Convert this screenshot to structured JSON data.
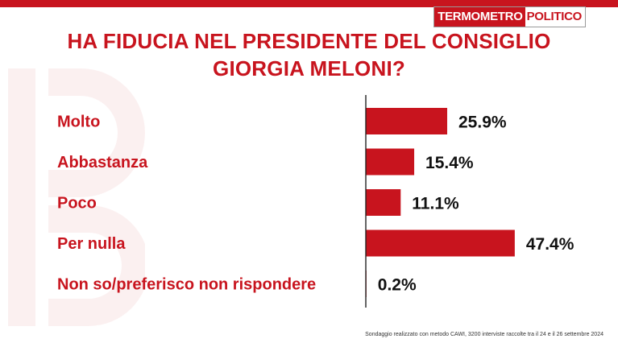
{
  "logo": {
    "part1": "TERMOMETRO",
    "part2": "POLITICO"
  },
  "title_lines": [
    "HA FIDUCIA NEL PRESIDENTE DEL CONSIGLIO",
    "GIORGIA MELONI?"
  ],
  "footnote": "Sondaggio realizzato con metodo CAWI, 3200 interviste raccolte tra il 24 e il  26 settembre 2024",
  "colors": {
    "accent": "#c8141e",
    "bar": "#c8141e",
    "axis": "#222222"
  },
  "chart_data": {
    "type": "bar",
    "orientation": "horizontal",
    "categories": [
      "Molto",
      "Abbastanza",
      "Poco",
      "Per nulla",
      "Non so/preferisco non rispondere"
    ],
    "values": [
      25.9,
      15.4,
      11.1,
      47.4,
      0.2
    ],
    "value_labels": [
      "25.9%",
      "15.4%",
      "11.1%",
      "47.4%",
      "0.2%"
    ],
    "xlim": [
      0,
      50
    ],
    "grid": false,
    "legend": "none"
  }
}
